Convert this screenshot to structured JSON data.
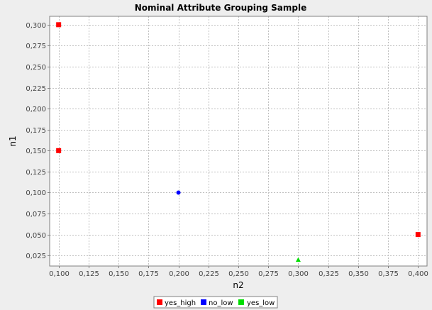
{
  "chart_data": {
    "type": "scatter",
    "title": "Nominal Attribute Grouping Sample",
    "xlabel": "n2",
    "ylabel": "n1",
    "xlim": [
      0.0925,
      0.4075
    ],
    "ylim": [
      0.0125,
      0.31
    ],
    "x_ticks": [
      "0,100",
      "0,125",
      "0,150",
      "0,175",
      "0,200",
      "0,225",
      "0,250",
      "0,275",
      "0,300",
      "0,325",
      "0,350",
      "0,375",
      "0,400"
    ],
    "y_ticks": [
      "0,025",
      "0,050",
      "0,075",
      "0,100",
      "0,125",
      "0,150",
      "0,175",
      "0,200",
      "0,225",
      "0,250",
      "0,275",
      "0,300"
    ],
    "grid": true,
    "legend_position": "bottom-center",
    "series": [
      {
        "name": "yes_high",
        "color": "#FF0000",
        "marker": "square",
        "points": [
          {
            "x": 0.1,
            "y": 0.3
          },
          {
            "x": 0.1,
            "y": 0.15
          },
          {
            "x": 0.4,
            "y": 0.05
          }
        ]
      },
      {
        "name": "no_low",
        "color": "#0000FF",
        "marker": "circle",
        "points": [
          {
            "x": 0.2,
            "y": 0.1
          }
        ]
      },
      {
        "name": "yes_low",
        "color": "#00DD00",
        "marker": "triangle",
        "points": [
          {
            "x": 0.3,
            "y": 0.02
          }
        ]
      }
    ]
  }
}
